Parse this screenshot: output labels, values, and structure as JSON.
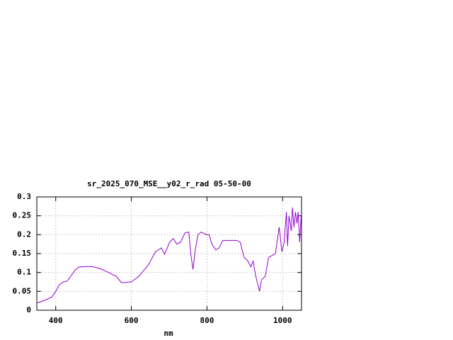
{
  "chart_data": {
    "type": "line",
    "title": "sr_2025_070_MSE__y02_r_rad 05-50-00",
    "x_label": "nm",
    "x": [
      350,
      370,
      390,
      400,
      410,
      420,
      430,
      440,
      450,
      460,
      480,
      500,
      520,
      540,
      560,
      574,
      600,
      620,
      645,
      664,
      679,
      688,
      701,
      711,
      720,
      730,
      742,
      752,
      757,
      763,
      769,
      776,
      785,
      798,
      806,
      813,
      823,
      832,
      842,
      860,
      879,
      888,
      898,
      907,
      916,
      922,
      929,
      939,
      944,
      954,
      963,
      972,
      981,
      991,
      998,
      1004,
      1010,
      1013,
      1017,
      1023,
      1026,
      1030,
      1034,
      1038,
      1041,
      1045,
      1049
    ],
    "series": [
      {
        "name": "sr_2025_070_MSE__y02_r_rad",
        "color": "#9400d3",
        "values": [
          0.019,
          0.026,
          0.035,
          0.05,
          0.068,
          0.075,
          0.077,
          0.09,
          0.105,
          0.114,
          0.116,
          0.115,
          0.109,
          0.1,
          0.09,
          0.073,
          0.075,
          0.09,
          0.12,
          0.155,
          0.165,
          0.148,
          0.18,
          0.19,
          0.175,
          0.18,
          0.205,
          0.207,
          0.15,
          0.108,
          0.16,
          0.2,
          0.207,
          0.2,
          0.2,
          0.175,
          0.16,
          0.165,
          0.185,
          0.185,
          0.185,
          0.18,
          0.14,
          0.132,
          0.115,
          0.13,
          0.09,
          0.05,
          0.08,
          0.09,
          0.14,
          0.145,
          0.15,
          0.22,
          0.155,
          0.18,
          0.26,
          0.17,
          0.25,
          0.21,
          0.272,
          0.22,
          0.26,
          0.23,
          0.26,
          0.18,
          0.25
        ]
      }
    ],
    "xlim": [
      350,
      1050
    ],
    "xticks": [
      400,
      600,
      800,
      1000
    ],
    "ylim": [
      0,
      0.3
    ],
    "yticks": [
      0,
      0.05,
      0.1,
      0.15,
      0.2,
      0.25,
      0.3
    ],
    "grid": true
  }
}
